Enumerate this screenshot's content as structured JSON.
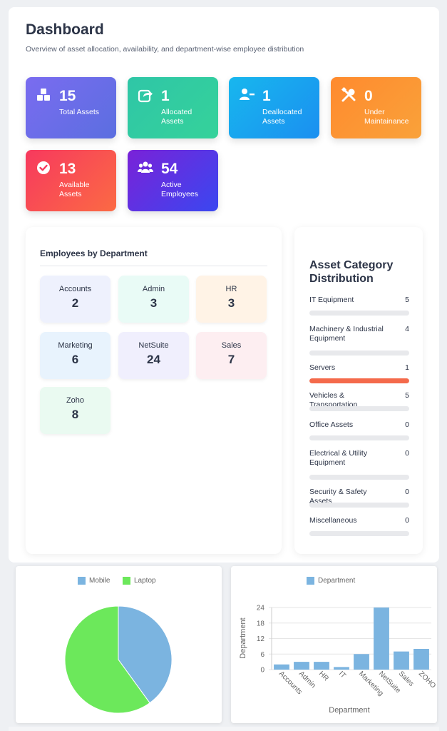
{
  "header": {
    "title": "Dashboard",
    "subtitle": "Overview of asset allocation, availability, and department-wise employee distribution"
  },
  "stats": [
    {
      "value": "15",
      "label": "Total Assets",
      "icon": "boxes-icon"
    },
    {
      "value": "1",
      "label": "Allocated Assets",
      "icon": "share-icon"
    },
    {
      "value": "1",
      "label": "Deallocated Assets",
      "icon": "user-minus-icon"
    },
    {
      "value": "0",
      "label": "Under Maintainance",
      "icon": "tools-icon"
    },
    {
      "value": "13",
      "label": "Available Assets",
      "icon": "check-circle-icon"
    },
    {
      "value": "54",
      "label": "Active Employees",
      "icon": "users-icon"
    }
  ],
  "departments": {
    "title": "Employees by Department",
    "items": [
      {
        "name": "Accounts",
        "count": "2",
        "color": "#eef1fd"
      },
      {
        "name": "Admin",
        "count": "3",
        "color": "#e9fbf6"
      },
      {
        "name": "HR",
        "count": "3",
        "color": "#fff3e6"
      },
      {
        "name": "Marketing",
        "count": "6",
        "color": "#e8f3fd"
      },
      {
        "name": "NetSuite",
        "count": "24",
        "color": "#f0effd"
      },
      {
        "name": "Sales",
        "count": "7",
        "color": "#fdeef1"
      },
      {
        "name": "Zoho",
        "count": "8",
        "color": "#eafaf1"
      }
    ]
  },
  "categories": {
    "title": "Asset Category Distribution",
    "items": [
      {
        "name": "IT Equipment",
        "count": "5",
        "highlight": false
      },
      {
        "name": "Machinery & Industrial Equipment",
        "count": "4",
        "highlight": false
      },
      {
        "name": "Servers",
        "count": "1",
        "highlight": true
      },
      {
        "name": "Vehicles & Transportation",
        "count": "5",
        "highlight": false
      },
      {
        "name": "Office Assets",
        "count": "0",
        "highlight": false
      },
      {
        "name": "Electrical & Utility Equipment",
        "count": "0",
        "highlight": false
      },
      {
        "name": "Security & Safety Assets",
        "count": "0",
        "highlight": false
      },
      {
        "name": "Miscellaneous",
        "count": "0",
        "highlight": false
      }
    ]
  },
  "chart_data": [
    {
      "type": "pie",
      "legend": [
        "Mobile",
        "Laptop"
      ],
      "values": [
        0.4,
        0.6
      ],
      "colors": [
        "#7bb4e0",
        "#6ce85b"
      ],
      "legend_position": "top"
    },
    {
      "type": "bar",
      "legend": [
        "Department"
      ],
      "categories": [
        "Accounts",
        "Admin",
        "HR",
        "IT",
        "Marketing",
        "NetSuite",
        "Sales",
        "ZOHO"
      ],
      "values": [
        2,
        3,
        3,
        1,
        6,
        24,
        7,
        8
      ],
      "xlabel": "Department",
      "ylabel": "Department",
      "yticks": [
        "0",
        "6",
        "12",
        "18",
        "24"
      ],
      "ylim": [
        0,
        24
      ],
      "color": "#7bb4e0",
      "grid": true,
      "legend_position": "top"
    }
  ]
}
